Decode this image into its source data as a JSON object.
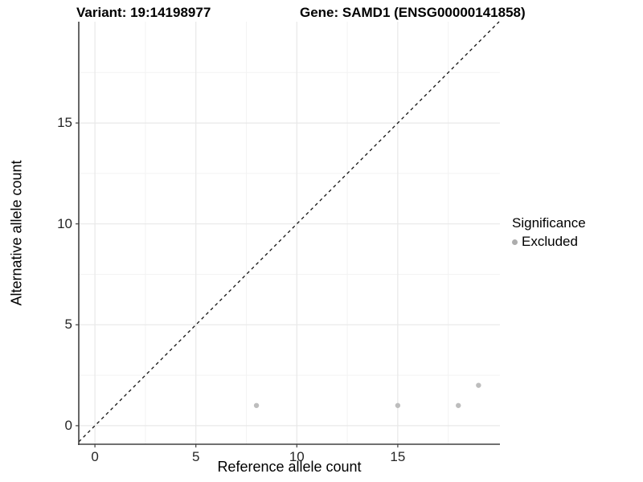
{
  "header": {
    "variant_title": "Variant: 19:14198977",
    "gene_title": "Gene: SAMD1 (ENSG00000141858)"
  },
  "chart_data": {
    "type": "scatter",
    "xlabel": "Reference allele count",
    "ylabel": "Alternative allele count",
    "x_ticks": [
      0,
      5,
      10,
      15
    ],
    "y_ticks": [
      0,
      5,
      10,
      15
    ],
    "xlim": [
      -0.8,
      20.06
    ],
    "ylim": [
      -0.92,
      20.02
    ],
    "grid": "major and minor gridlines on",
    "identity_line": {
      "style": "dashed",
      "slope": 1,
      "intercept": 0,
      "color": "#111111"
    },
    "series": [
      {
        "name": "Excluded",
        "color": "#bdbdbd",
        "points": [
          [
            8,
            1
          ],
          [
            15,
            1
          ],
          [
            18,
            1
          ],
          [
            19,
            2
          ]
        ]
      }
    ],
    "legend": {
      "title": "Significance",
      "position": "right",
      "entries": [
        {
          "label": "Excluded",
          "color": "#adadad"
        }
      ]
    }
  },
  "colors": {
    "major_grid": "#e8e8e8",
    "minor_grid": "#f3f3f3",
    "axis_line": "#404040",
    "point": "#bdbdbd"
  }
}
